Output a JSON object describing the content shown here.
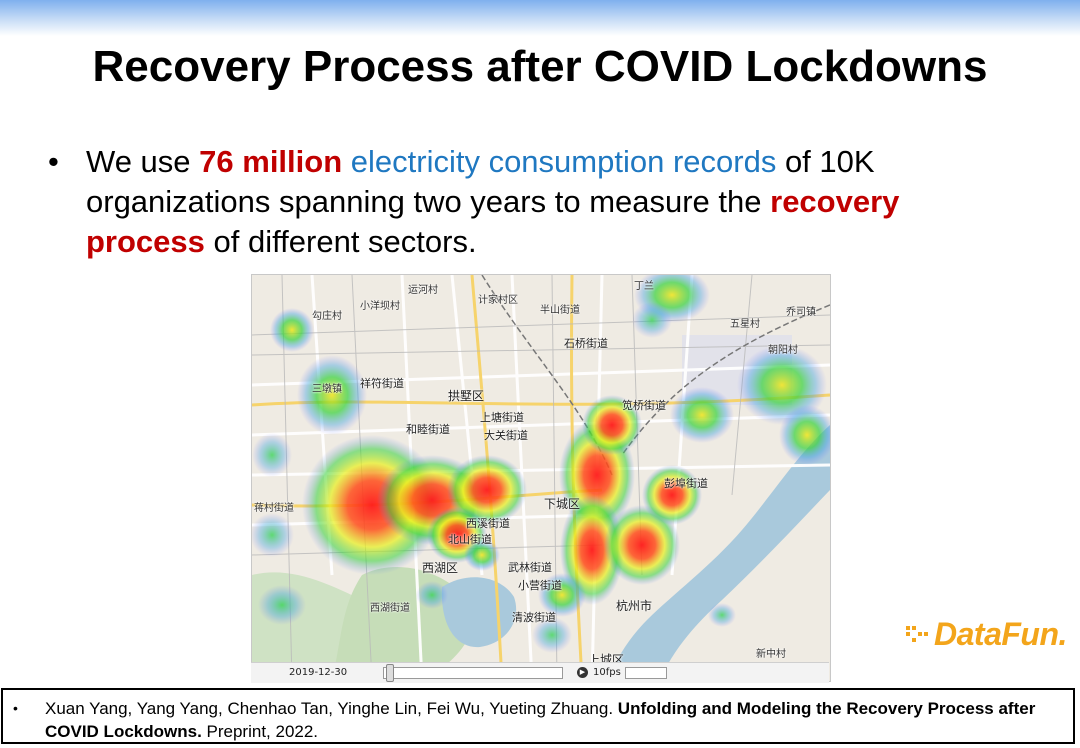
{
  "slide": {
    "title": "Recovery Process after COVID Lockdowns",
    "bullet": {
      "marker": "•",
      "part1": "We use ",
      "highlight_count": "76 million",
      "part2": " ",
      "highlight_records": "electricity consumption records",
      "part3": " of 10K organizations spanning two years to measure the ",
      "highlight_recovery": "recovery process",
      "part4": " of different sectors."
    }
  },
  "map": {
    "labels": {
      "l1": "丁兰",
      "l2": "半山街道",
      "l3": "运河村",
      "l4": "计家村区",
      "l5": "小洋坝村",
      "l6": "勾庄村",
      "l7": "石桥街道",
      "l8": "五星村",
      "l9": "祥符街道",
      "l10": "拱墅区",
      "l11": "三墩镇",
      "l12": "上塘街道",
      "l13": "和睦街道",
      "l14": "大关街道",
      "l15": "笕桥街道",
      "l16": "下城区",
      "l17": "西湖区",
      "l18": "武林街道",
      "l19": "小营街道",
      "l20": "西湖街道",
      "l21": "清波街道",
      "l22": "杭州市",
      "l23": "上城区",
      "l24": "彭埠街道",
      "l25": "蒋村街道",
      "l26": "乔司镇",
      "l27": "朝阳村",
      "l28": "新中村",
      "l29": "北山街道",
      "l30": "西溪街道"
    },
    "timebar": {
      "date": "2019-12-30",
      "fps": "10fps"
    }
  },
  "logo": {
    "text": "DataFun."
  },
  "footer": {
    "marker": "•",
    "authors": "Xuan Yang, Yang Yang, Chenhao Tan, Yinghe Lin, Fei Wu, Yueting Zhuang. ",
    "paper_title": "Unfolding and Modeling the Recovery Process after COVID Lockdowns.",
    "venue": " Preprint, 2022."
  },
  "colors": {
    "accent_red": "#c00000",
    "accent_blue": "#1f78c1",
    "logo_orange": "#f3a51b",
    "river": "#a9c9dc"
  }
}
